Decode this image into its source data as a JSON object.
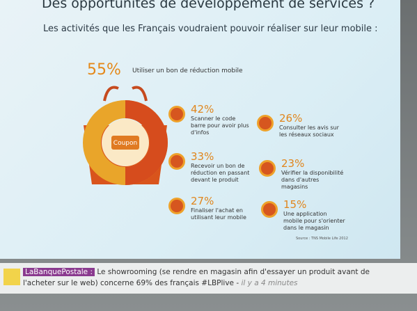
{
  "title": "Des opportunités de développement de services ?",
  "subtitle": "Les activités que les Français voudraient pouvoir réaliser sur leur mobile :",
  "main": {
    "percent": "55%",
    "label": "Utiliser un bon de réduction mobile",
    "icon_label": "Coupon"
  },
  "items": [
    {
      "percent": "42%",
      "label": "Scanner le code barre pour avoir plus d'infos"
    },
    {
      "percent": "33%",
      "label": "Recevoir un bon de réduction en passant devant le produit"
    },
    {
      "percent": "27%",
      "label": "Finaliser l'achat en utilisant leur mobile"
    },
    {
      "percent": "26%",
      "label": "Consulter les avis sur les réseaux sociaux"
    },
    {
      "percent": "23%",
      "label": "Vérifier la disponibilité dans d'autres magasins"
    },
    {
      "percent": "15%",
      "label": "Une application mobile pour s'orienter dans le magasin"
    }
  ],
  "source": "Source : TNS Mobile Life 2012",
  "ticker": {
    "handle": "LaBanquePostale :",
    "text": "Le showrooming (se rendre en magasin afin d'essayer un produit avant de l'acheter sur le web) concerne 69% des français #LBPlive -",
    "time": "il y a 4 minutes"
  }
}
